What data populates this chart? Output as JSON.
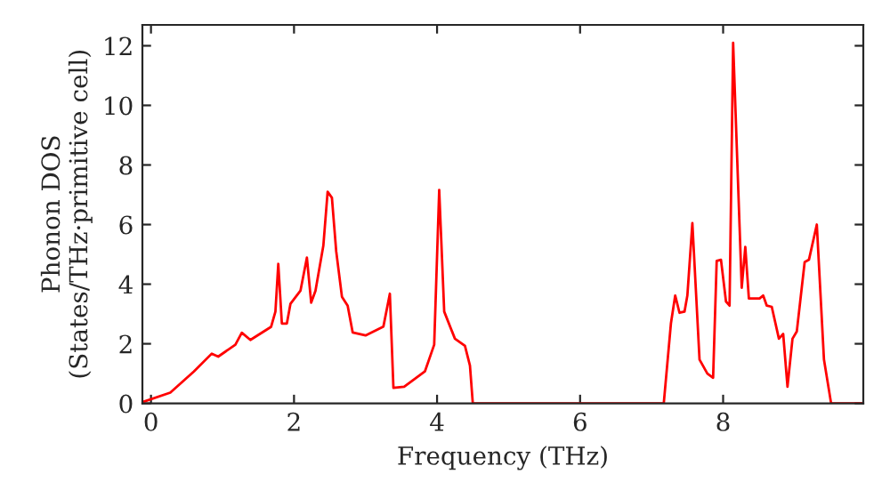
{
  "chart_data": {
    "type": "line",
    "xlabel": "Frequency (THz)",
    "ylabel": "Phonon DOS\n(States/THz·primitive cell)",
    "x": [
      -0.1,
      0.27,
      0.6,
      0.85,
      0.94,
      1.18,
      1.27,
      1.39,
      1.68,
      1.74,
      1.78,
      1.83,
      1.9,
      1.95,
      2.09,
      2.18,
      2.24,
      2.3,
      2.41,
      2.47,
      2.53,
      2.59,
      2.67,
      2.75,
      2.82,
      3.0,
      3.25,
      3.34,
      3.39,
      3.54,
      3.83,
      3.96,
      4.03,
      4.1,
      4.25,
      4.39,
      4.46,
      4.5,
      7.17,
      7.27,
      7.33,
      7.39,
      7.46,
      7.5,
      7.57,
      7.67,
      7.78,
      7.86,
      7.91,
      7.97,
      8.04,
      8.09,
      8.14,
      8.26,
      8.31,
      8.36,
      8.51,
      8.56,
      8.61,
      8.68,
      8.78,
      8.84,
      8.9,
      8.97,
      9.03,
      9.14,
      9.2,
      9.31,
      9.41,
      9.51,
      9.96
    ],
    "series": [
      {
        "color": "#ff0000",
        "values": [
          0.06,
          0.36,
          1.07,
          1.67,
          1.57,
          1.97,
          2.37,
          2.13,
          2.57,
          3.08,
          4.68,
          2.68,
          2.68,
          3.34,
          3.78,
          4.89,
          3.38,
          3.78,
          5.29,
          7.1,
          6.9,
          5.1,
          3.58,
          3.28,
          2.38,
          2.28,
          2.58,
          3.68,
          0.52,
          0.56,
          1.07,
          1.97,
          7.16,
          3.08,
          2.17,
          1.93,
          1.27,
          0,
          0,
          2.68,
          3.62,
          3.04,
          3.08,
          3.62,
          6.05,
          1.47,
          1.0,
          0.86,
          4.78,
          4.82,
          3.42,
          3.28,
          12.1,
          3.88,
          5.25,
          3.52,
          3.52,
          3.62,
          3.28,
          3.24,
          2.17,
          2.33,
          0.56,
          2.17,
          2.41,
          4.74,
          4.82,
          6.0,
          1.47,
          0,
          0
        ]
      }
    ],
    "xlim": [
      -0.12,
      9.96
    ],
    "ylim": [
      0,
      12.7
    ],
    "xticks": [
      0,
      2,
      4,
      6,
      8
    ],
    "yticks": [
      0,
      2,
      4,
      6,
      8,
      10,
      12
    ],
    "grid": false,
    "legend": false,
    "marker": "none",
    "line_style": "solid"
  }
}
